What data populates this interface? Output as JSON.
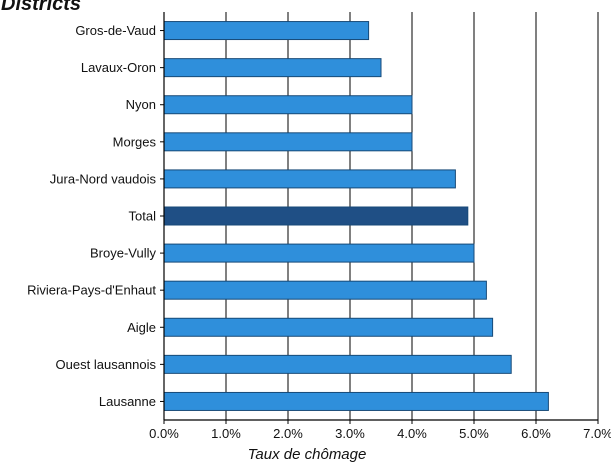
{
  "chart_data": {
    "type": "bar",
    "orientation": "horizontal",
    "heading": "Districts",
    "xlabel": "Taux de chômage",
    "ylabel": "",
    "xlim": [
      0,
      7
    ],
    "x_ticks": [
      "0.0%",
      "1.0%",
      "2.0%",
      "3.0%",
      "4.0%",
      "5.0%",
      "6.0%",
      "7.0%"
    ],
    "grid": "vertical gridlines at each 1.0% tick",
    "categories": [
      "Gros-de-Vaud",
      "Lavaux-Oron",
      "Nyon",
      "Morges",
      "Jura-Nord vaudois",
      "Total",
      "Broye-Vully",
      "Riviera-Pays-d'Enhaut",
      "Aigle",
      "Ouest lausannois",
      "Lausanne"
    ],
    "values": [
      3.3,
      3.5,
      4.0,
      4.0,
      4.7,
      4.9,
      5.0,
      5.2,
      5.3,
      5.6,
      6.2
    ],
    "unit": "%",
    "colors": {
      "bar": "#2f8fdb",
      "bar_highlight": "#1f4f85",
      "bar_edge": "#174a78",
      "grid": "#000000",
      "axis": "#000000"
    },
    "highlight_category": "Total"
  }
}
